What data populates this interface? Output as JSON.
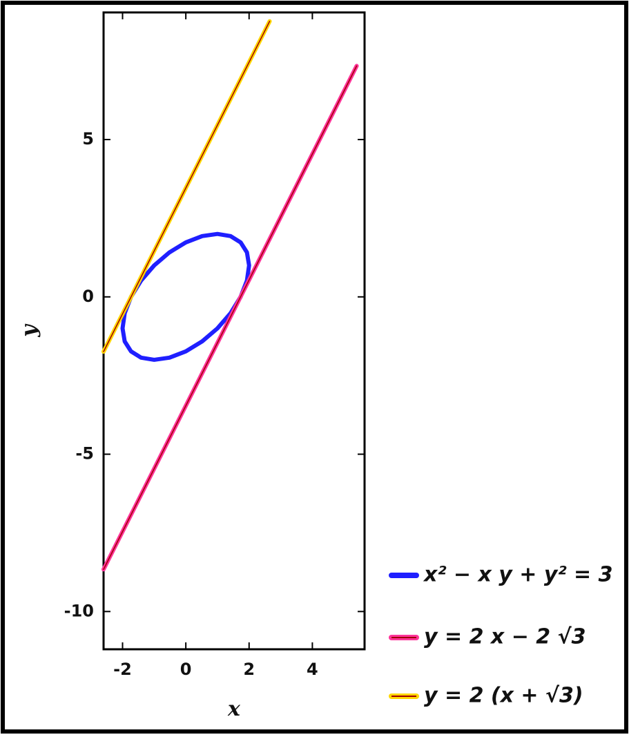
{
  "chart_data": {
    "type": "line",
    "x_label": "x",
    "y_label": "y",
    "xlim": [
      -2.6,
      5.65
    ],
    "ylim": [
      -11.2,
      9.04
    ],
    "xticks": [
      -2,
      0,
      2,
      4
    ],
    "yticks": [
      -10,
      -5,
      0,
      5
    ],
    "legend": "bottom-right",
    "series": [
      {
        "name": "x² − x y + y² = 3",
        "color": "#1f1fff",
        "x": [
          1.732,
          1.414,
          1.0,
          0.518,
          0,
          -0.518,
          -1,
          -1.414,
          -1.732,
          -1.932,
          -2,
          -1.932,
          -1.732,
          -1.414,
          -1,
          -0.518,
          0,
          0.518,
          1,
          1.414,
          1.732,
          1.932,
          2,
          1.932,
          1.732
        ],
        "values": [
          1.732,
          1.932,
          2.0,
          1.932,
          1.732,
          1.414,
          1,
          0.518,
          0,
          -0.518,
          -1,
          -1.414,
          -1.732,
          -1.932,
          -2,
          -1.932,
          -1.732,
          -1.414,
          -1,
          -0.518,
          0,
          0.518,
          1,
          1.414,
          1.732
        ]
      },
      {
        "name": "y = 2 x − 2 √3",
        "color": "#ff3399",
        "x": [
          -2.6,
          5.4
        ],
        "values": [
          -8.66,
          7.34
        ]
      },
      {
        "name": "y = 2 (x + √3)",
        "color": "#ffd700",
        "x": [
          -2.6,
          2.65
        ],
        "values": [
          -1.74,
          8.76
        ]
      }
    ]
  }
}
